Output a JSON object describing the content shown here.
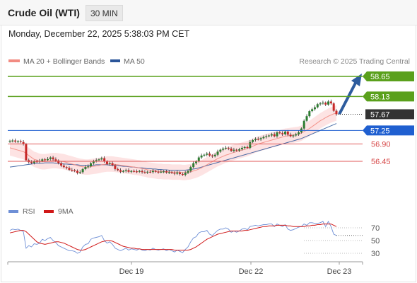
{
  "header": {
    "instrument": "Crude Oil (WTI)",
    "timeframe": "30 MIN",
    "timestamp": "Monday, December 22, 2025 5:38:03 PM CET"
  },
  "legend": {
    "items": [
      {
        "label": "MA 20 + Bollinger Bands",
        "color": "#f28b82"
      },
      {
        "label": "MA 50",
        "color": "#2a5599"
      }
    ],
    "credit": "Research © 2025 Trading Central"
  },
  "rsi_legend": {
    "items": [
      {
        "label": "RSI",
        "color": "#6e8fd6"
      },
      {
        "label": "9MA",
        "color": "#d01818"
      }
    ]
  },
  "colors": {
    "up_candle": "#2e7d32",
    "down_candle": "#c62828",
    "resistance": "#5aa01c",
    "pivot": "#1f5fd0",
    "support": "#e05a5a",
    "last_price": "#333333",
    "arrow": "#2d5c9e",
    "band_fill": "#fde0e0"
  },
  "chart_data": [
    {
      "type": "candlestick",
      "title": "",
      "xlabel": "",
      "ylabel": "",
      "x_ticks": [
        "Dec 19",
        "Dec 22",
        "Dec 23"
      ],
      "ylim": [
        56.1,
        58.8
      ],
      "grid": false,
      "levels": [
        {
          "value": 58.65,
          "label": "58.65",
          "kind": "resistance"
        },
        {
          "value": 58.13,
          "label": "58.13",
          "kind": "resistance"
        },
        {
          "value": 57.67,
          "label": "57.67",
          "kind": "last"
        },
        {
          "value": 57.25,
          "label": "57.25",
          "kind": "pivot"
        },
        {
          "value": 56.9,
          "label": "56.90",
          "kind": "support"
        },
        {
          "value": 56.45,
          "label": "56.45",
          "kind": "support"
        }
      ],
      "close": [
        56.98,
        56.99,
        56.96,
        56.97,
        56.95,
        56.9,
        56.48,
        56.43,
        56.41,
        56.45,
        56.44,
        56.46,
        56.5,
        56.48,
        56.51,
        56.55,
        56.5,
        56.47,
        56.4,
        56.34,
        56.3,
        56.28,
        56.23,
        56.22,
        56.2,
        56.15,
        56.17,
        56.25,
        56.3,
        56.32,
        56.4,
        56.45,
        56.48,
        56.5,
        56.53,
        56.45,
        56.38,
        56.4,
        56.35,
        56.25,
        56.22,
        56.18,
        56.2,
        56.22,
        56.18,
        56.2,
        56.19,
        56.18,
        56.2,
        56.17,
        56.16,
        56.18,
        56.17,
        56.2,
        56.18,
        56.17,
        56.18,
        56.19,
        56.16,
        56.17,
        56.15,
        56.13,
        56.16,
        56.12,
        56.1,
        56.15,
        56.2,
        56.3,
        56.4,
        56.45,
        56.55,
        56.6,
        56.62,
        56.65,
        56.6,
        56.58,
        56.62,
        56.7,
        56.75,
        56.78,
        56.8,
        56.78,
        56.72,
        56.75,
        56.73,
        56.76,
        56.8,
        56.82,
        56.8,
        56.95,
        57.0,
        57.03,
        57.02,
        57.05,
        57.08,
        57.1,
        57.12,
        57.15,
        57.1,
        57.2,
        57.18,
        57.15,
        57.22,
        57.14,
        57.1,
        57.12,
        57.15,
        57.2,
        57.3,
        57.5,
        57.62,
        57.75,
        57.8,
        57.85,
        57.93,
        57.95,
        57.97,
        57.92,
        58.0,
        57.95,
        57.76,
        57.67
      ],
      "ma20": [
        56.8,
        56.78,
        56.76,
        56.74,
        56.72,
        56.7,
        56.66,
        56.6,
        56.55,
        56.5,
        56.48,
        56.45,
        56.44,
        56.44,
        56.45,
        56.46,
        56.47,
        56.47,
        56.46,
        56.45,
        56.44,
        56.42,
        56.4,
        56.38,
        56.36,
        56.34,
        56.32,
        56.31,
        56.3,
        56.3,
        56.31,
        56.32,
        56.33,
        56.34,
        56.36,
        56.37,
        56.38,
        56.38,
        56.38,
        56.37,
        56.36,
        56.35,
        56.34,
        56.33,
        56.32,
        56.31,
        56.3,
        56.29,
        56.28,
        56.26,
        56.25,
        56.23,
        56.22,
        56.21,
        56.2,
        56.19,
        56.19,
        56.18,
        56.18,
        56.18,
        56.17,
        56.17,
        56.17,
        56.17,
        56.16,
        56.16,
        56.17,
        56.18,
        56.2,
        56.22,
        56.25,
        56.28,
        56.32,
        56.36,
        56.4,
        56.44,
        56.48,
        56.52,
        56.55,
        56.58,
        56.61,
        56.63,
        56.66,
        56.68,
        56.7,
        56.72,
        56.74,
        56.76,
        56.78,
        56.81,
        56.84,
        56.87,
        56.9,
        56.92,
        56.94,
        56.96,
        56.98,
        57.0,
        57.02,
        57.04,
        57.06,
        57.08,
        57.1,
        57.11,
        57.12,
        57.13,
        57.14,
        57.15,
        57.18,
        57.22,
        57.26,
        57.3,
        57.35,
        57.4,
        57.45,
        57.5,
        57.54,
        57.58,
        57.62,
        57.65,
        57.68,
        57.7
      ],
      "ma50": [
        56.3,
        56.31,
        56.32,
        56.33,
        56.34,
        56.35,
        56.36,
        56.37,
        56.38,
        56.39,
        56.4,
        56.4,
        56.4,
        56.41,
        56.41,
        56.41,
        56.41,
        56.4,
        56.4,
        56.39,
        56.38,
        56.38,
        56.37,
        56.37,
        56.36,
        56.36,
        56.35,
        56.35,
        56.35,
        56.35,
        56.35,
        56.35,
        56.36,
        56.36,
        56.36,
        56.36,
        56.36,
        56.35,
        56.35,
        56.34,
        56.34,
        56.33,
        56.32,
        56.32,
        56.31,
        56.3,
        56.3,
        56.29,
        56.28,
        56.28,
        56.27,
        56.26,
        56.26,
        56.25,
        56.25,
        56.24,
        56.24,
        56.23,
        56.23,
        56.22,
        56.22,
        56.22,
        56.22,
        56.22,
        56.22,
        56.22,
        56.23,
        56.24,
        56.25,
        56.26,
        56.28,
        56.3,
        56.32,
        56.34,
        56.36,
        56.38,
        56.4,
        56.42,
        56.44,
        56.46,
        56.48,
        56.5,
        56.52,
        56.54,
        56.56,
        56.58,
        56.6,
        56.62,
        56.64,
        56.66,
        56.68,
        56.7,
        56.72,
        56.74,
        56.76,
        56.78,
        56.8,
        56.82,
        56.84,
        56.86,
        56.88,
        56.9,
        56.92,
        56.94,
        56.96,
        56.98,
        57.0,
        57.02,
        57.04,
        57.07,
        57.1,
        57.13,
        57.16,
        57.19,
        57.22,
        57.25,
        57.28,
        57.31,
        57.34,
        57.37,
        57.4,
        57.43
      ],
      "band_width": 0.2
    },
    {
      "type": "line",
      "title": "",
      "ylim": [
        20,
        80
      ],
      "y_ticks": [
        70,
        50,
        30
      ],
      "series": [
        {
          "name": "RSI",
          "values": [
            66,
            68,
            67,
            68,
            66,
            64,
            38,
            42,
            40,
            45,
            44,
            46,
            52,
            50,
            53,
            55,
            50,
            47,
            42,
            40,
            38,
            36,
            34,
            34,
            33,
            30,
            32,
            40,
            44,
            45,
            52,
            54,
            55,
            56,
            58,
            50,
            46,
            48,
            44,
            38,
            36,
            34,
            36,
            38,
            35,
            37,
            36,
            35,
            37,
            35,
            34,
            36,
            35,
            38,
            36,
            35,
            36,
            37,
            34,
            36,
            34,
            32,
            35,
            33,
            31,
            36,
            40,
            48,
            54,
            56,
            62,
            64,
            64,
            66,
            60,
            58,
            62,
            66,
            68,
            68,
            70,
            68,
            63,
            65,
            63,
            65,
            68,
            69,
            67,
            72,
            73,
            74,
            73,
            74,
            75,
            75,
            76,
            76,
            72,
            76,
            74,
            72,
            75,
            68,
            66,
            67,
            69,
            71,
            72,
            76,
            74,
            78,
            78,
            77,
            77,
            78,
            80,
            72,
            80,
            72,
            60,
            58
          ]
        },
        {
          "name": "9MA",
          "values": [
            62,
            63,
            64,
            65,
            66,
            66,
            64,
            60,
            56,
            52,
            48,
            46,
            45,
            44,
            45,
            46,
            47,
            48,
            48,
            47,
            46,
            44,
            42,
            40,
            38,
            36,
            35,
            35,
            36,
            38,
            40,
            42,
            44,
            46,
            48,
            49,
            50,
            50,
            49,
            47,
            45,
            43,
            41,
            40,
            39,
            38,
            38,
            37,
            37,
            36,
            36,
            36,
            36,
            36,
            36,
            36,
            36,
            36,
            36,
            36,
            36,
            35,
            35,
            35,
            35,
            35,
            35,
            36,
            38,
            40,
            43,
            46,
            49,
            52,
            54,
            56,
            58,
            60,
            61,
            62,
            63,
            64,
            65,
            65,
            65,
            65,
            65,
            66,
            66,
            67,
            68,
            69,
            70,
            71,
            72,
            72,
            73,
            73,
            73,
            74,
            74,
            74,
            74,
            73,
            73,
            72,
            72,
            72,
            72,
            72,
            73,
            73,
            74,
            74,
            75,
            75,
            76,
            76,
            76,
            76,
            74,
            72
          ]
        }
      ]
    }
  ]
}
